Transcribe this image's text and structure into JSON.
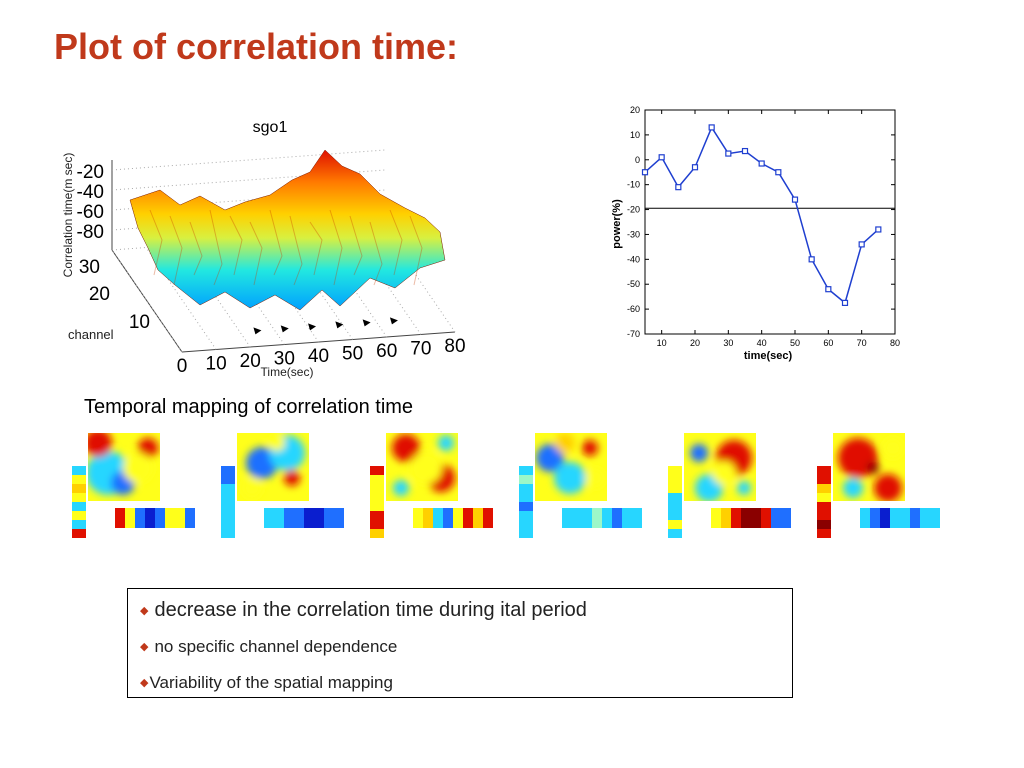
{
  "slide": {
    "title": "Plot of correlation time:",
    "maps_title": "Temporal mapping of correlation time",
    "bullets": [
      {
        "text": "decrease in the correlation time during ital period"
      },
      {
        "text": "no specific channel dependence"
      },
      {
        "text": "Variability of the spatial mapping"
      }
    ],
    "bullet_icon": "diamond-bullet-icon",
    "colors": {
      "title": "#c0391b",
      "bullet": "#c0391b",
      "power_line": "#1f3fd0",
      "threshold_line": "#000000"
    }
  },
  "chart_data": [
    {
      "type": "surface",
      "title": "sgo1",
      "xlabel": "Time(sec)",
      "ylabel": "channel",
      "zlabel": "Correlation time(m sec)",
      "x_ticks": [
        "0",
        "10",
        "20",
        "30",
        "40",
        "50",
        "60",
        "70",
        "80"
      ],
      "y_ticks": [
        "10",
        "20",
        "30"
      ],
      "z_ticks": [
        "-20",
        "-40",
        "-60",
        "-80"
      ],
      "xlim": [
        0,
        80
      ],
      "ylim": [
        0,
        32
      ],
      "zlim": [
        -90,
        -10
      ],
      "colormap": "jet",
      "time_markers_count": 6
    },
    {
      "type": "line",
      "xlabel": "time(sec)",
      "ylabel": "power(%)",
      "xlim": [
        5,
        80
      ],
      "ylim": [
        -70,
        20
      ],
      "x_ticks": [
        10,
        20,
        30,
        40,
        50,
        60,
        70,
        80
      ],
      "y_ticks": [
        20,
        10,
        0,
        -10,
        -20,
        -30,
        -40,
        -50,
        -60,
        -70
      ],
      "reference_line_y": -19.5,
      "series": [
        {
          "x": [
            5,
            10,
            15,
            20,
            25,
            30,
            35,
            40,
            45,
            50,
            55,
            60,
            65,
            70,
            75
          ],
          "y": [
            -5,
            1,
            -11,
            -3,
            13,
            2.5,
            3.5,
            -1.5,
            -5,
            -16,
            -40,
            -52,
            -57.5,
            -34,
            -28
          ]
        }
      ]
    }
  ],
  "maps": {
    "count": 6,
    "colormap": "jet"
  }
}
